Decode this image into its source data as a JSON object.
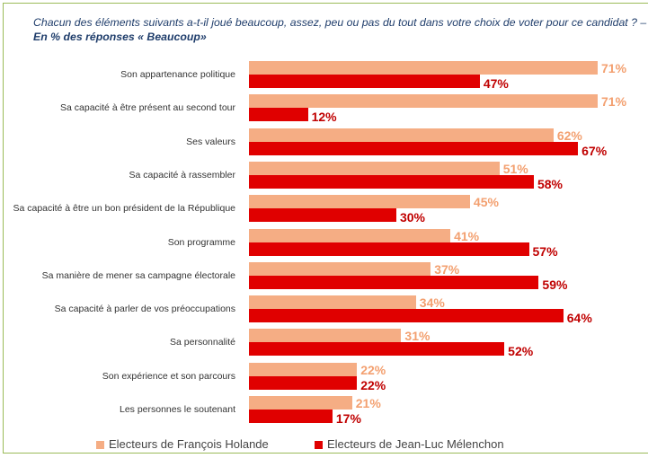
{
  "chart_data": {
    "type": "bar",
    "orientation": "horizontal",
    "title": "Chacun des éléments suivants a-t-il joué beaucoup, assez, peu ou pas du tout dans votre choix de voter pour ce candidat ? –",
    "subtitle": "En % des réponses « Beaucoup»",
    "categories": [
      "Son appartenance politique",
      "Sa capacité à être présent au second tour",
      "Ses valeurs",
      "Sa capacité à rassembler",
      "Sa capacité à être un bon président de la République",
      "Son programme",
      "Sa manière de mener sa campagne électorale",
      "Sa capacité à parler de vos préoccupations",
      "Sa personnalité",
      "Son expérience et son parcours",
      "Les personnes le soutenant"
    ],
    "series": [
      {
        "name": "Electeurs de François Holande",
        "color": "#f5ad84",
        "label_color": "#f3a070",
        "values": [
          71,
          71,
          62,
          51,
          45,
          41,
          37,
          34,
          31,
          22,
          21
        ],
        "value_labels": [
          "71%",
          "71%",
          "62%",
          "51%",
          "45%",
          "41%",
          "37%",
          "34%",
          "31%",
          "22%",
          "21%"
        ]
      },
      {
        "name": "Electeurs de Jean-Luc Mélenchon",
        "color": "#e00000",
        "label_color": "#c00000",
        "values": [
          47,
          12,
          67,
          58,
          30,
          57,
          59,
          64,
          52,
          22,
          17
        ],
        "value_labels": [
          "47%",
          "12%",
          "67%",
          "58%",
          "30%",
          "57%",
          "59%",
          "64%",
          "52%",
          "22%",
          "17%"
        ]
      }
    ]
  }
}
